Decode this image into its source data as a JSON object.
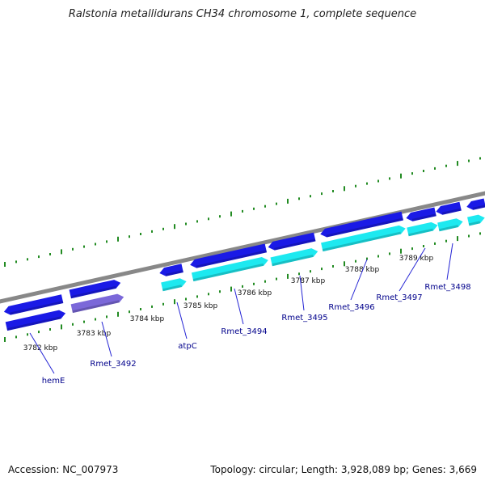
{
  "title": "Ralstonia metallidurans CH34 chromosome 1, complete sequence",
  "accession": "Accession: NC_007973",
  "summary": "Topology: circular; Length: 3,928,089 bp; Genes: 3,669",
  "colors": {
    "backbone": "#888888",
    "tick": "#228b22",
    "gene_dark": "#1a1ae6",
    "gene_light": "#1de9f0",
    "gene_purple": "#7b68d9",
    "label": "#00008b"
  },
  "scale_labels": [
    "3782 kbp",
    "3783 kbp",
    "3784 kbp",
    "3785 kbp",
    "3786 kbp",
    "3787 kbp",
    "3788 kbp",
    "3789 kbp"
  ],
  "gene_labels": [
    "hemE",
    "Rmet_3492",
    "atpC",
    "Rmet_3494",
    "Rmet_3495",
    "Rmet_3496",
    "Rmet_3497",
    "Rmet_3498"
  ]
}
